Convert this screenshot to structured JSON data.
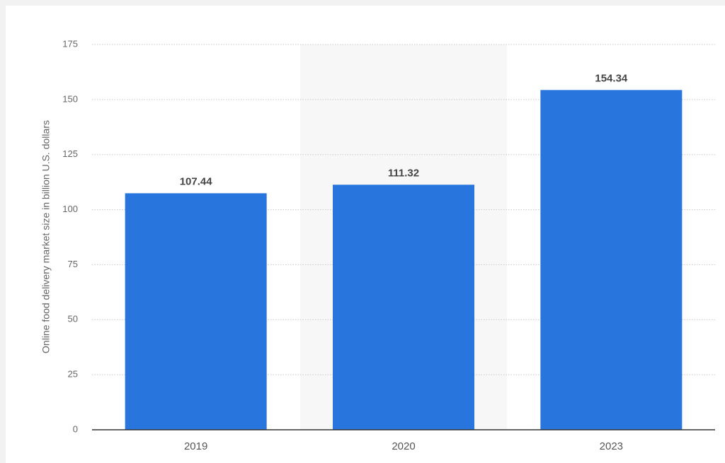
{
  "chart_data": {
    "type": "bar",
    "y_label": "Online food delivery market size in billion U.S. dollars",
    "categories": [
      "2019",
      "2020",
      "2023"
    ],
    "values": [
      107.44,
      111.32,
      154.34
    ],
    "color": "#2876dd",
    "ylim": [
      0,
      175
    ],
    "yticks": [
      0,
      25,
      50,
      75,
      100,
      125,
      150,
      175
    ],
    "grid": true
  }
}
